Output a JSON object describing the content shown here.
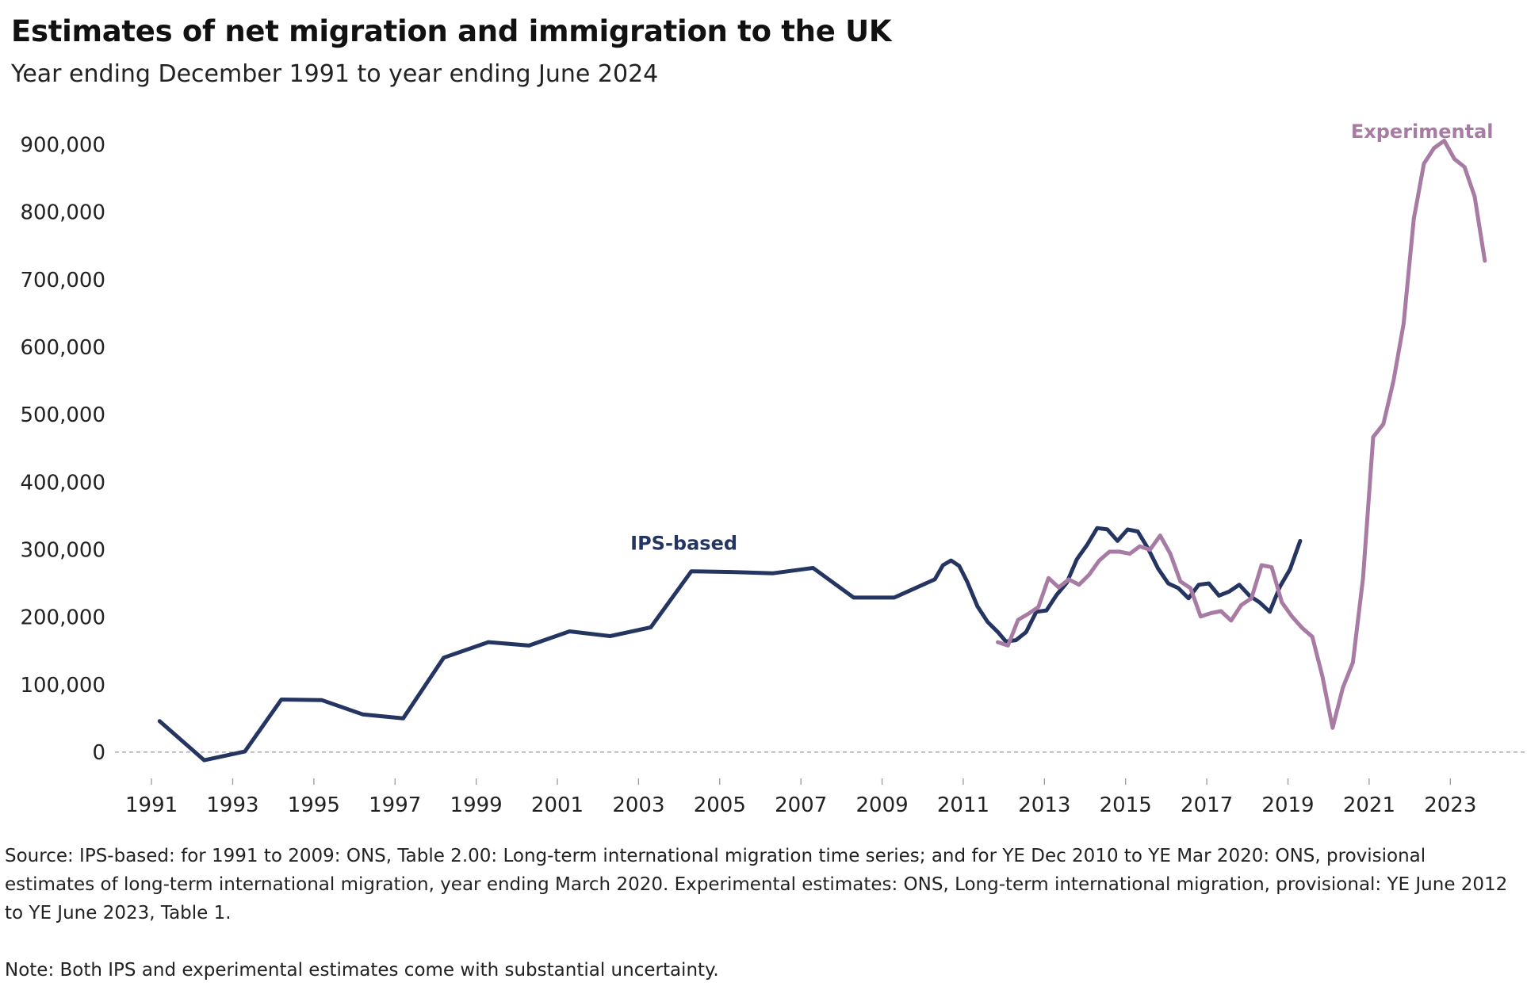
{
  "header": {
    "title": "Estimates of net migration and immigration to the UK",
    "subtitle": "Year ending December 1991 to year ending June 2024"
  },
  "footer": {
    "source": "Source: IPS-based: for 1991 to 2009: ONS, Table 2.00: Long-term international migration time series; and for YE Dec 2010 to YE Mar 2020: ONS, provisional estimates of long-term international migration, year ending March 2020. Experimental estimates: ONS, Long-term international migration, provisional: YE June 2012 to YE June 2023, Table 1.",
    "note": "Note: Both IPS and experimental estimates come with substantial uncertainty."
  },
  "chart_data": {
    "type": "line",
    "title": "Estimates of net migration and immigration to the UK",
    "subtitle": "Year ending December 1991 to year ending June 2024",
    "xlabel": "",
    "ylabel": "",
    "xlim": [
      1990.1,
      2024.85
    ],
    "ylim": [
      -60000,
      950000
    ],
    "x_ticks": [
      1991,
      1993,
      1995,
      1997,
      1999,
      2001,
      2003,
      2005,
      2007,
      2009,
      2011,
      2013,
      2015,
      2017,
      2019,
      2021,
      2023
    ],
    "y_ticks": [
      0,
      100000,
      200000,
      300000,
      400000,
      500000,
      600000,
      700000,
      800000,
      900000
    ],
    "y_tick_labels": [
      "0",
      "100,000",
      "200,000",
      "300,000",
      "400,000",
      "500,000",
      "600,000",
      "700,000",
      "800,000",
      "900,000"
    ],
    "grid": false,
    "zero_line": true,
    "legend": "none",
    "series": [
      {
        "name": "IPS-based",
        "color": "#253562",
        "label_at": [
          2002.8,
          300000
        ],
        "points": [
          [
            1991.2,
            46000
          ],
          [
            1992.3,
            -12000
          ],
          [
            1993.3,
            1000
          ],
          [
            1994.2,
            78000
          ],
          [
            1995.2,
            77000
          ],
          [
            1996.2,
            56000
          ],
          [
            1997.2,
            50000
          ],
          [
            1998.2,
            140000
          ],
          [
            1999.3,
            163000
          ],
          [
            2000.3,
            158000
          ],
          [
            2001.3,
            179000
          ],
          [
            2002.3,
            172000
          ],
          [
            2003.3,
            185000
          ],
          [
            2004.3,
            268000
          ],
          [
            2005.3,
            267000
          ],
          [
            2006.3,
            265000
          ],
          [
            2007.3,
            273000
          ],
          [
            2008.3,
            229000
          ],
          [
            2009.3,
            229000
          ],
          [
            2010.3,
            256000
          ],
          [
            2010.5,
            277000
          ],
          [
            2010.7,
            284000
          ],
          [
            2010.9,
            276000
          ],
          [
            2011.1,
            252000
          ],
          [
            2011.35,
            216000
          ],
          [
            2011.6,
            193000
          ],
          [
            2011.85,
            178000
          ],
          [
            2012.05,
            164000
          ],
          [
            2012.3,
            166000
          ],
          [
            2012.55,
            178000
          ],
          [
            2012.8,
            208000
          ],
          [
            2013.05,
            210000
          ],
          [
            2013.3,
            233000
          ],
          [
            2013.55,
            251000
          ],
          [
            2013.8,
            286000
          ],
          [
            2014.05,
            307000
          ],
          [
            2014.3,
            332000
          ],
          [
            2014.55,
            330000
          ],
          [
            2014.8,
            313000
          ],
          [
            2015.05,
            330000
          ],
          [
            2015.3,
            327000
          ],
          [
            2015.55,
            302000
          ],
          [
            2015.8,
            272000
          ],
          [
            2016.05,
            250000
          ],
          [
            2016.3,
            243000
          ],
          [
            2016.55,
            228000
          ],
          [
            2016.8,
            248000
          ],
          [
            2017.05,
            250000
          ],
          [
            2017.3,
            232000
          ],
          [
            2017.55,
            238000
          ],
          [
            2017.8,
            248000
          ],
          [
            2018.05,
            232000
          ],
          [
            2018.3,
            222000
          ],
          [
            2018.55,
            208000
          ],
          [
            2018.8,
            245000
          ],
          [
            2019.05,
            271000
          ],
          [
            2019.3,
            313000
          ]
        ]
      },
      {
        "name": "Experimental",
        "color": "#a77ba3",
        "label_at": [
          2020.55,
          910000
        ],
        "points": [
          [
            2011.85,
            163000
          ],
          [
            2012.1,
            158000
          ],
          [
            2012.35,
            196000
          ],
          [
            2012.6,
            205000
          ],
          [
            2012.85,
            215000
          ],
          [
            2013.1,
            258000
          ],
          [
            2013.35,
            244000
          ],
          [
            2013.6,
            256000
          ],
          [
            2013.85,
            248000
          ],
          [
            2014.1,
            263000
          ],
          [
            2014.35,
            284000
          ],
          [
            2014.6,
            297000
          ],
          [
            2014.85,
            297000
          ],
          [
            2015.1,
            294000
          ],
          [
            2015.35,
            305000
          ],
          [
            2015.6,
            300000
          ],
          [
            2015.85,
            321000
          ],
          [
            2016.1,
            294000
          ],
          [
            2016.35,
            253000
          ],
          [
            2016.6,
            243000
          ],
          [
            2016.85,
            201000
          ],
          [
            2017.1,
            206000
          ],
          [
            2017.35,
            209000
          ],
          [
            2017.6,
            195000
          ],
          [
            2017.85,
            218000
          ],
          [
            2018.1,
            228000
          ],
          [
            2018.35,
            277000
          ],
          [
            2018.6,
            274000
          ],
          [
            2018.85,
            222000
          ],
          [
            2019.1,
            201000
          ],
          [
            2019.35,
            184000
          ],
          [
            2019.6,
            171000
          ],
          [
            2019.85,
            112000
          ],
          [
            2020.1,
            36000
          ],
          [
            2020.35,
            95000
          ],
          [
            2020.6,
            133000
          ],
          [
            2020.85,
            258000
          ],
          [
            2021.1,
            467000
          ],
          [
            2021.35,
            486000
          ],
          [
            2021.6,
            550000
          ],
          [
            2021.85,
            635000
          ],
          [
            2022.1,
            790000
          ],
          [
            2022.35,
            872000
          ],
          [
            2022.6,
            895000
          ],
          [
            2022.85,
            906000
          ],
          [
            2023.1,
            879000
          ],
          [
            2023.35,
            867000
          ],
          [
            2023.6,
            823000
          ],
          [
            2023.85,
            728000
          ]
        ]
      }
    ]
  }
}
